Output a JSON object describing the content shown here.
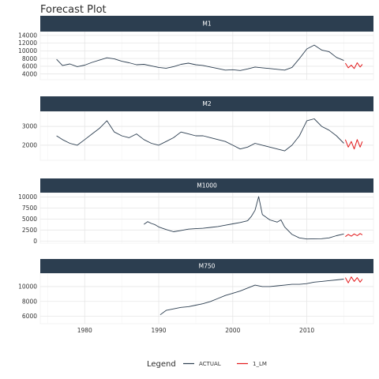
{
  "chart_data": {
    "type": "line",
    "title": "Forecast Plot",
    "layout": "faceted-vertical",
    "x_axis": {
      "range": [
        1974,
        2019
      ],
      "ticks": [
        1980,
        1990,
        2000,
        2010
      ]
    },
    "legend": {
      "title": "Legend",
      "position": "bottom",
      "entries": [
        "ACTUAL",
        "1_LM"
      ]
    },
    "colors": {
      "ACTUAL": "#2c3e50",
      "1_LM": "#e31a1c",
      "strip": "#2c3e50",
      "grid": "#e6e6e6"
    },
    "panels": [
      {
        "name": "M1",
        "ylim": [
          2500,
          15000
        ],
        "yticks": [
          4000,
          6000,
          8000,
          10000,
          12000,
          14000
        ],
        "ytick_labels": [
          "4000",
          "6000",
          "8000",
          "10000",
          "12000",
          "14000"
        ],
        "actual": {
          "x": [
            1976.2,
            1977,
            1978,
            1979,
            1980,
            1981,
            1982,
            1983,
            1984,
            1985,
            1986,
            1987,
            1988,
            1989,
            1990,
            1991,
            1992,
            1993,
            1994,
            1995,
            1996,
            1997,
            1998,
            1999,
            2000,
            2001,
            2002,
            2003,
            2004,
            2005,
            2006,
            2007,
            2008,
            2009,
            2010,
            2011,
            2012,
            2013,
            2014,
            2015
          ],
          "y": [
            7800,
            6200,
            6600,
            5900,
            6300,
            7000,
            7600,
            8200,
            7900,
            7300,
            6900,
            6400,
            6500,
            6100,
            5700,
            5500,
            5900,
            6500,
            6800,
            6400,
            6200,
            5800,
            5400,
            5000,
            5100,
            4900,
            5300,
            5800,
            5600,
            5400,
            5200,
            5000,
            5700,
            8000,
            10500,
            11500,
            10200,
            9800,
            8300,
            7500
          ]
        },
        "forecast": {
          "x": [
            2015.2,
            2015.6,
            2016,
            2016.4,
            2016.8,
            2017.2,
            2017.5
          ],
          "y": [
            6800,
            5600,
            6300,
            5400,
            6900,
            5800,
            6500
          ]
        }
      },
      {
        "name": "M2",
        "ylim": [
          1200,
          3800
        ],
        "yticks": [
          2000,
          3000
        ],
        "ytick_labels": [
          "2000",
          "3000"
        ],
        "actual": {
          "x": [
            1976.2,
            1977,
            1978,
            1979,
            1980,
            1981,
            1982,
            1983,
            1984,
            1985,
            1986,
            1987,
            1988,
            1989,
            1990,
            1991,
            1992,
            1993,
            1994,
            1995,
            1996,
            1997,
            1998,
            1999,
            2000,
            2001,
            2002,
            2003,
            2004,
            2005,
            2006,
            2007,
            2008,
            2009,
            2010,
            2011,
            2012,
            2013,
            2014,
            2015
          ],
          "y": [
            2500,
            2300,
            2100,
            2000,
            2300,
            2600,
            2900,
            3300,
            2700,
            2500,
            2400,
            2600,
            2300,
            2100,
            2000,
            2200,
            2400,
            2700,
            2600,
            2500,
            2500,
            2400,
            2300,
            2200,
            2000,
            1800,
            1900,
            2100,
            2000,
            1900,
            1800,
            1700,
            2000,
            2500,
            3300,
            3400,
            3000,
            2800,
            2500,
            2100
          ]
        },
        "forecast": {
          "x": [
            2015.2,
            2015.6,
            2016,
            2016.4,
            2016.8,
            2017.2,
            2017.5
          ],
          "y": [
            2300,
            1900,
            2200,
            1800,
            2300,
            1900,
            2200
          ]
        }
      },
      {
        "name": "M1000",
        "ylim": [
          -500,
          11000
        ],
        "yticks": [
          0,
          2500,
          5000,
          7500,
          10000
        ],
        "ytick_labels": [
          "0",
          "2500",
          "5000",
          "7500",
          "10000"
        ],
        "actual": {
          "x": [
            1988,
            1988.5,
            1989,
            1989.5,
            1990,
            1991,
            1992,
            1993,
            1994,
            1995,
            1996,
            1997,
            1998,
            1999,
            2000,
            2001,
            2002,
            2002.5,
            2003,
            2003.5,
            2004,
            2005,
            2006,
            2006.5,
            2007,
            2008,
            2009,
            2010,
            2011,
            2012,
            2013,
            2014,
            2015
          ],
          "y": [
            3800,
            4400,
            4000,
            3700,
            3200,
            2600,
            2100,
            2400,
            2700,
            2800,
            2900,
            3100,
            3300,
            3600,
            3900,
            4200,
            4600,
            5600,
            7000,
            10100,
            6000,
            4800,
            4300,
            4800,
            3200,
            1500,
            700,
            450,
            500,
            520,
            700,
            1200,
            1600
          ]
        },
        "forecast": {
          "x": [
            2015.2,
            2015.6,
            2016,
            2016.4,
            2016.8,
            2017.2,
            2017.5
          ],
          "y": [
            1000,
            1500,
            1100,
            1600,
            1200,
            1700,
            1400
          ]
        }
      },
      {
        "name": "M750",
        "ylim": [
          5000,
          11800
        ],
        "yticks": [
          6000,
          8000,
          10000
        ],
        "ytick_labels": [
          "6000",
          "8000",
          "10000"
        ],
        "actual": {
          "x": [
            1990.2,
            1991,
            1992,
            1993,
            1994,
            1995,
            1996,
            1997,
            1998,
            1999,
            2000,
            2001,
            2002,
            2003,
            2004,
            2005,
            2006,
            2007,
            2008,
            2009,
            2010,
            2011,
            2012,
            2013,
            2014,
            2015
          ],
          "y": [
            6200,
            6800,
            7000,
            7200,
            7300,
            7500,
            7700,
            8000,
            8400,
            8800,
            9100,
            9400,
            9800,
            10200,
            10000,
            10000,
            10100,
            10200,
            10300,
            10300,
            10400,
            10600,
            10700,
            10800,
            10900,
            11000
          ]
        },
        "forecast": {
          "x": [
            2015.2,
            2015.6,
            2016,
            2016.4,
            2016.8,
            2017.2,
            2017.5
          ],
          "y": [
            11200,
            10500,
            11300,
            10700,
            11200,
            10600,
            11000
          ]
        }
      }
    ]
  }
}
